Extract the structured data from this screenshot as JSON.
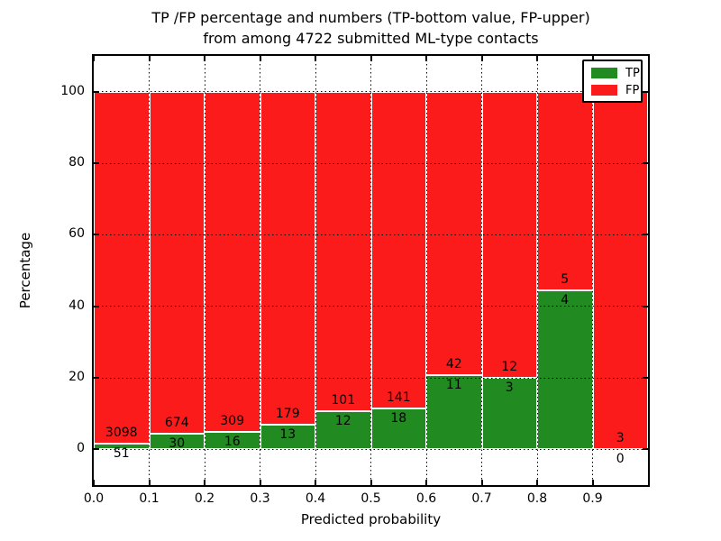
{
  "chart_data": {
    "type": "bar",
    "stacked": true,
    "normalized_to_percent": true,
    "title_line1": "TP /FP percentage and numbers (TP-bottom value, FP-upper)",
    "title_line2": "from among 4722 submitted ML-type contacts",
    "xlabel": "Predicted probability",
    "ylabel": "Percentage",
    "total_contacts_shown_in_title": 4722,
    "bin_starts": [
      0.0,
      0.1,
      0.2,
      0.3,
      0.4,
      0.5,
      0.6,
      0.7,
      0.8,
      0.9
    ],
    "bin_width": 0.1,
    "series": [
      {
        "name": "TP",
        "color": "#218a21",
        "counts": [
          51,
          30,
          16,
          13,
          12,
          18,
          11,
          3,
          4,
          0
        ]
      },
      {
        "name": "FP",
        "color": "#fb1b1b",
        "counts": [
          3098,
          674,
          309,
          179,
          101,
          141,
          42,
          12,
          5,
          3
        ]
      }
    ],
    "tp_percent_heights": [
      1.62,
      4.26,
      4.92,
      6.77,
      10.62,
      11.32,
      20.75,
      20.0,
      44.44,
      0.0
    ],
    "bar_label_rule": "FP count above green/red boundary, TP count below it",
    "xticks": [
      "0.0",
      "0.1",
      "0.2",
      "0.3",
      "0.4",
      "0.5",
      "0.6",
      "0.7",
      "0.8",
      "0.9"
    ],
    "yticks": [
      "0",
      "20",
      "40",
      "60",
      "80",
      "100"
    ],
    "xlim": [
      0.0,
      1.0
    ],
    "ylim": [
      -10,
      110
    ],
    "grid": "dotted black, vertical at each 0.1 and horizontal at each 20%",
    "legend": {
      "position": "upper right",
      "entries": [
        "TP",
        "FP"
      ]
    },
    "colors": {
      "tp_green": "#218a21",
      "fp_red": "#fb1b1b",
      "bar_edge": "#ffffff",
      "axes_and_text": "#000000",
      "background": "#ffffff"
    }
  }
}
